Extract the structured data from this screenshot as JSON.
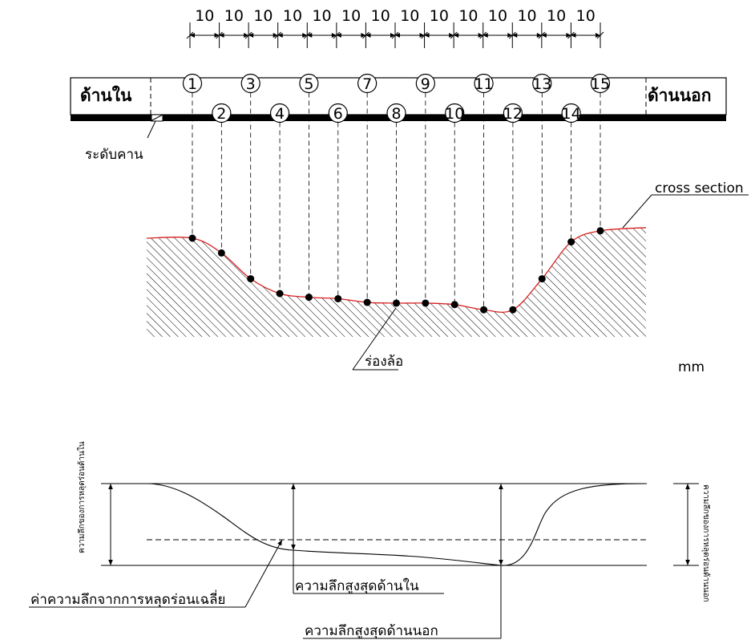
{
  "dimension_labels": [
    "10",
    "10",
    "10",
    "10",
    "10",
    "10",
    "10",
    "10",
    "10",
    "10",
    "10",
    "10",
    "10",
    "10"
  ],
  "inner_side_label": "ด้านใน",
  "outer_side_label": "ด้านนอก",
  "points": [
    {
      "n": "1",
      "depth": 0
    },
    {
      "n": "2",
      "depth": 0.2
    },
    {
      "n": "3",
      "depth": 0.55
    },
    {
      "n": "4",
      "depth": 0.75
    },
    {
      "n": "5",
      "depth": 0.8
    },
    {
      "n": "6",
      "depth": 0.82
    },
    {
      "n": "7",
      "depth": 0.87
    },
    {
      "n": "8",
      "depth": 0.88
    },
    {
      "n": "9",
      "depth": 0.88
    },
    {
      "n": "10",
      "depth": 0.9
    },
    {
      "n": "11",
      "depth": 0.97
    },
    {
      "n": "12",
      "depth": 0.97
    },
    {
      "n": "13",
      "depth": 0.55
    },
    {
      "n": "14",
      "depth": 0.05
    },
    {
      "n": "15",
      "depth": -0.1
    }
  ],
  "beam_level_label": "ระดับคาน",
  "cross_section_label": "cross section",
  "wheel_groove_label": "ร่องล้อ",
  "unit_label": "mm",
  "inner_wear_depth_label": "ความลึกของการหลุดร่อนด้านใน",
  "outer_wear_depth_label": "ความลึกของการหลุดร่อนด้านนอก",
  "avg_depth_label": "ค่าความลึกจากการหลุดร่อนเฉลี่ย",
  "max_inner_depth_label": "ความลึกสูงสุดด้านใน",
  "max_outer_depth_label": "ความลึกสูงสุดด้านนอก",
  "colors": {
    "profile_line": "#d62020",
    "ink": "#000000"
  }
}
